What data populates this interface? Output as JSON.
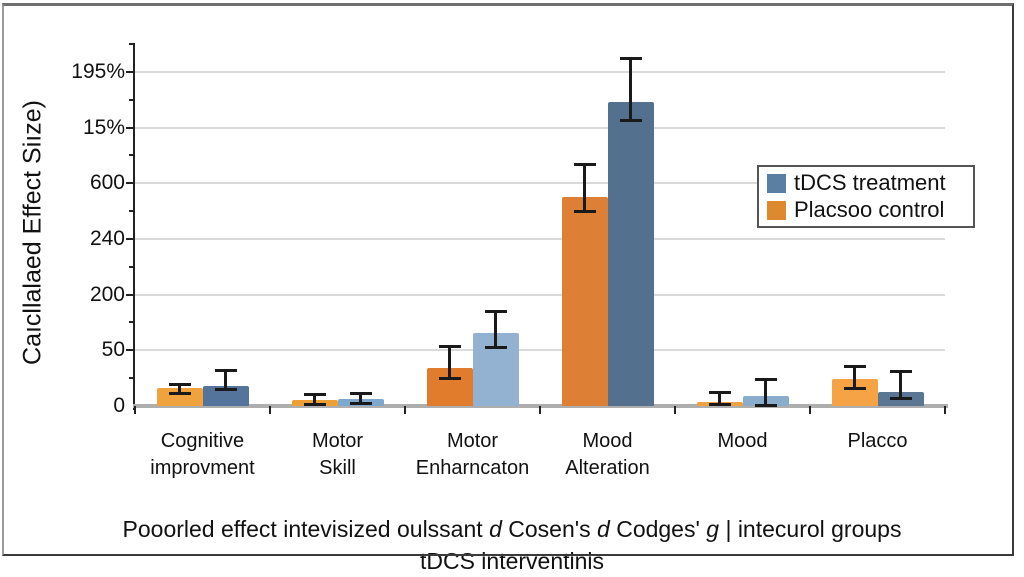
{
  "y_axis": {
    "title": "Caıcllalaed Effect Siıze)",
    "tick_labels_bottom_to_top": [
      "0",
      "50",
      "200",
      "240",
      "600",
      "15%",
      "195%"
    ]
  },
  "legend": {
    "items": [
      {
        "label": "tDCS treatment",
        "color": "#5b7fa3"
      },
      {
        "label": "Placsoo control",
        "color": "#dd8a2e"
      }
    ]
  },
  "caption": {
    "line1_segments": [
      {
        "text": "Pooorled effect intevisized oulssant ",
        "italic": false
      },
      {
        "text": "d",
        "italic": true
      },
      {
        "text": " Cosen's ",
        "italic": false
      },
      {
        "text": "d",
        "italic": true
      },
      {
        "text": " Codges' ",
        "italic": false
      },
      {
        "text": "g",
        "italic": true
      },
      {
        "text": " | intecurol groups",
        "italic": false
      }
    ],
    "line2": "tDCS interventinis"
  },
  "chart_data": {
    "type": "bar",
    "title": "",
    "xlabel": "",
    "ylabel": "Caıcllalaed Effect Siıze)",
    "y_tick_labels_bottom_to_top": [
      "0",
      "50",
      "200",
      "240",
      "600",
      "15%",
      "195%"
    ],
    "axis_note": "y axis labels are garbled/nonlinear; values given in axis units where the first gridline above 0 equals 50 units and gridlines are evenly spaced",
    "grid": true,
    "legend_position": "upper right",
    "error_bars": true,
    "series_order": [
      "Placsoo control (orange, left bar)",
      "tDCS treatment (blue, right bar)"
    ],
    "categories": [
      "Cognitive\nimprovment",
      "Motor\nSkill",
      "Motor\nEnharncaton",
      "Mood\nAlteration",
      "Mood",
      "Placco"
    ],
    "groups": [
      {
        "label": "Cognitive\nimprovment",
        "bars": [
          {
            "series": "placebo",
            "value": 16,
            "err_up": 4,
            "err_down": 4,
            "color": "#f0a33d"
          },
          {
            "series": "tdcs",
            "value": 18,
            "err_up": 14,
            "err_down": 3,
            "color": "#54749b"
          }
        ]
      },
      {
        "label": "Motor\nSkill",
        "bars": [
          {
            "series": "placebo",
            "value": 5,
            "err_up": 6,
            "err_down": 3,
            "color": "#eda033"
          },
          {
            "series": "tdcs",
            "value": 6,
            "err_up": 6,
            "err_down": 3,
            "color": "#7fa8cf"
          }
        ]
      },
      {
        "label": "Motor\nEnharncaton",
        "bars": [
          {
            "series": "placebo",
            "value": 34,
            "err_up": 20,
            "err_down": 9,
            "color": "#e07c2c"
          },
          {
            "series": "tdcs",
            "value": 66,
            "err_up": 19,
            "err_down": 13,
            "color": "#93b1d1"
          }
        ]
      },
      {
        "label": "Mood\nAlteration",
        "bars": [
          {
            "series": "placebo",
            "value": 188,
            "err_up": 29,
            "err_down": 13,
            "color": "#dd7f35"
          },
          {
            "series": "tdcs",
            "value": 273,
            "err_up": 40,
            "err_down": 16,
            "color": "#53718f"
          }
        ]
      },
      {
        "label": "Mood",
        "bars": [
          {
            "series": "placebo",
            "value": 4,
            "err_up": 9,
            "err_down": 2,
            "color": "#f0a143"
          },
          {
            "series": "tdcs",
            "value": 9,
            "err_up": 15,
            "err_down": 8,
            "color": "#8aaccd"
          }
        ]
      },
      {
        "label": "Placco",
        "bars": [
          {
            "series": "placebo",
            "value": 24,
            "err_up": 12,
            "err_down": 8,
            "color": "#f5a344"
          },
          {
            "series": "tdcs",
            "value": 13,
            "err_up": 18,
            "err_down": 6,
            "color": "#5a7693"
          }
        ]
      }
    ]
  }
}
